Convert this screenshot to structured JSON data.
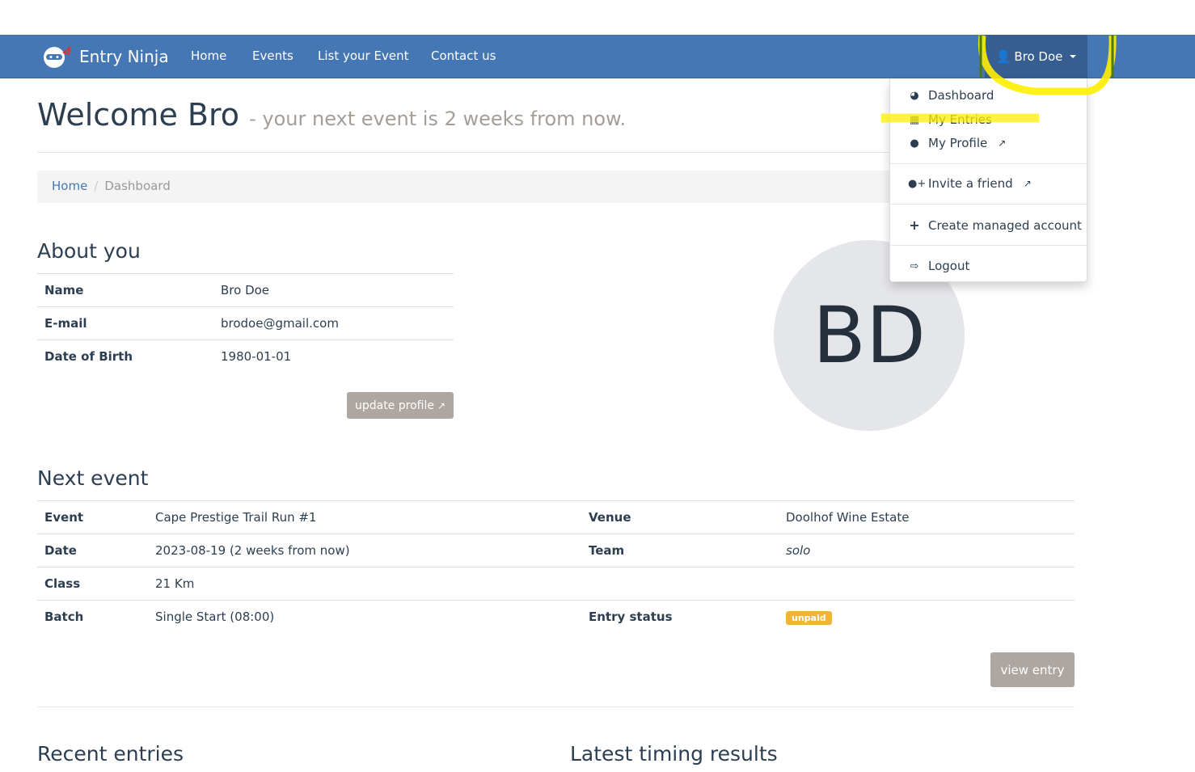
{
  "nav": {
    "brand": "Entry Ninja",
    "links": [
      "Home",
      "Events",
      "List your Event",
      "Contact us"
    ],
    "user": "Bro Doe"
  },
  "dropdown": {
    "items": [
      "Dashboard",
      "My Entries",
      "My Profile",
      "Invite a friend",
      "Create managed account",
      "Logout"
    ]
  },
  "header": {
    "title": "Welcome Bro",
    "subtitle": "- your next event is 2 weeks from now."
  },
  "breadcrumb": [
    "Home",
    "Dashboard"
  ],
  "about": {
    "heading": "About you",
    "rows": [
      [
        "Name",
        "Bro Doe"
      ],
      [
        "E-mail",
        "brodoe@gmail.com"
      ],
      [
        "Date of Birth",
        "1980-01-01"
      ]
    ],
    "button": "update profile"
  },
  "avatar": {
    "initials": "BD"
  },
  "next_event": {
    "heading": "Next event",
    "rows": [
      [
        "Event",
        "Cape Prestige Trail Run #1",
        "Venue",
        "Doolhof Wine Estate"
      ],
      [
        "Date",
        "2023-08-19 (2 weeks from now)",
        "Team",
        "solo"
      ],
      [
        "Class",
        "21 Km",
        "",
        ""
      ],
      [
        "Batch",
        "Single Start (08:00)",
        "Entry status",
        ""
      ]
    ],
    "status_badge": "unpaid",
    "button": "view entry"
  },
  "sections": {
    "recent": "Recent entries",
    "timing": "Latest timing results"
  },
  "colors": {
    "navbar": "#4577b4",
    "badge": "#f0b43c",
    "button": "#aea6a0",
    "highlight": "#ffee00"
  }
}
